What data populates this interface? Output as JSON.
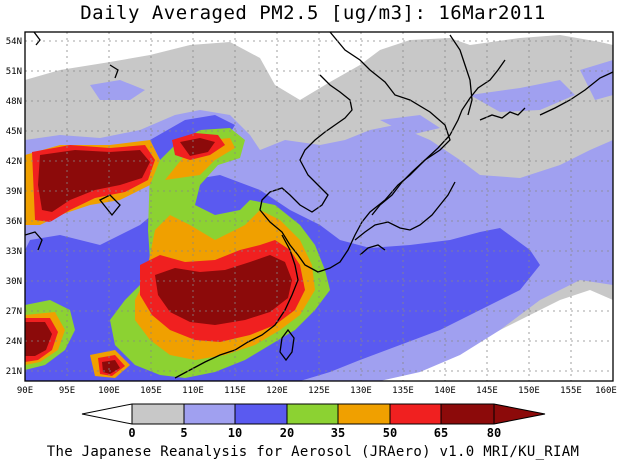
{
  "title": "Daily Averaged PM2.5 [ug/m3]: 16Mar2011",
  "footer": "The Japanese Reanalysis for Aerosol (JRAero) v1.0 MRI/KU_RIAM",
  "lat_labels": [
    "54N",
    "51N",
    "48N",
    "45N",
    "42N",
    "39N",
    "36N",
    "33N",
    "30N",
    "27N",
    "24N",
    "21N"
  ],
  "lon_labels": [
    "90E",
    "95E",
    "100E",
    "105E",
    "110E",
    "115E",
    "120E",
    "125E",
    "130E",
    "135E",
    "140E",
    "145E",
    "150E",
    "155E",
    "160E"
  ],
  "colorbar": {
    "ticks": [
      "0",
      "5",
      "10",
      "20",
      "35",
      "50",
      "65",
      "80"
    ],
    "colors": [
      "#ffffff",
      "#c8c8c8",
      "#a0a0f0",
      "#5a5af0",
      "#8cd232",
      "#f0a000",
      "#f02020",
      "#8c0a0a"
    ]
  }
}
